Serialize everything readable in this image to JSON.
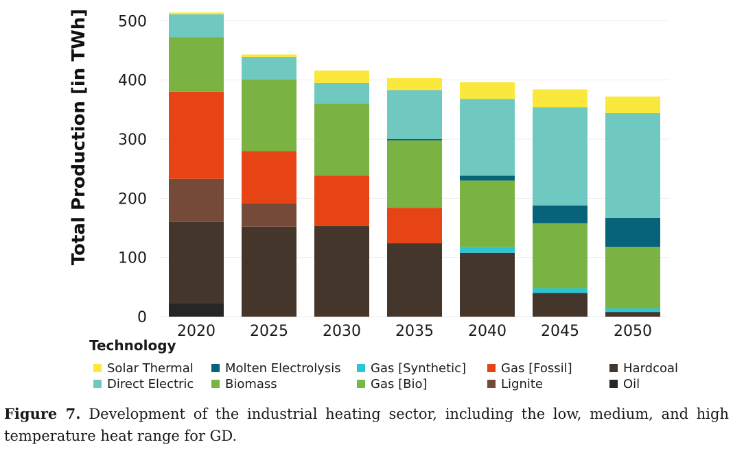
{
  "chart_data": {
    "type": "bar",
    "stacked": true,
    "title": "",
    "xlabel": "",
    "ylabel": "Total Production [in TWh]",
    "ylim": [
      0,
      520
    ],
    "yticks": [
      0,
      100,
      200,
      300,
      400,
      500
    ],
    "grid": true,
    "categories": [
      "2020",
      "2025",
      "2030",
      "2035",
      "2040",
      "2045",
      "2050"
    ],
    "legend_title": "Technology",
    "legend_position": "bottom",
    "series": [
      {
        "name": "Oil",
        "color": "#262626",
        "values": [
          22,
          0,
          0,
          0,
          0,
          0,
          0
        ]
      },
      {
        "name": "Hardcoal",
        "color": "#45362b",
        "values": [
          138,
          152,
          153,
          124,
          108,
          40,
          8
        ]
      },
      {
        "name": "Lignite",
        "color": "#754a39",
        "values": [
          73,
          40,
          0,
          0,
          0,
          0,
          0
        ]
      },
      {
        "name": "Gas [Fossil]",
        "color": "#e64414",
        "values": [
          147,
          88,
          85,
          60,
          0,
          0,
          0
        ]
      },
      {
        "name": "Gas [Synthetic]",
        "color": "#2ac6d5",
        "values": [
          0,
          0,
          0,
          0,
          10,
          8,
          6
        ]
      },
      {
        "name": "Gas [Bio]",
        "color": "#77b84a",
        "values": [
          0,
          0,
          0,
          0,
          0,
          0,
          0
        ]
      },
      {
        "name": "Biomass",
        "color": "#7ab342",
        "values": [
          92,
          121,
          122,
          114,
          112,
          110,
          104
        ]
      },
      {
        "name": "Molten Electrolysis",
        "color": "#07637a",
        "values": [
          0,
          0,
          0,
          2,
          8,
          30,
          49
        ]
      },
      {
        "name": "Direct Electric",
        "color": "#70c9c0",
        "values": [
          39,
          38,
          35,
          83,
          130,
          166,
          177
        ]
      },
      {
        "name": "Solar Thermal",
        "color": "#fbe83c",
        "values": [
          3,
          4,
          21,
          20,
          28,
          30,
          28
        ]
      }
    ],
    "legend_order": [
      "Solar Thermal",
      "Molten Electrolysis",
      "Gas [Synthetic]",
      "Gas [Fossil]",
      "Hardcoal",
      "Direct Electric",
      "Biomass",
      "Gas [Bio]",
      "Lignite",
      "Oil"
    ]
  },
  "caption": {
    "label": "Figure 7.",
    "text": "Development of the industrial heating sector, including the low, medium, and high temperature heat range for GD."
  }
}
